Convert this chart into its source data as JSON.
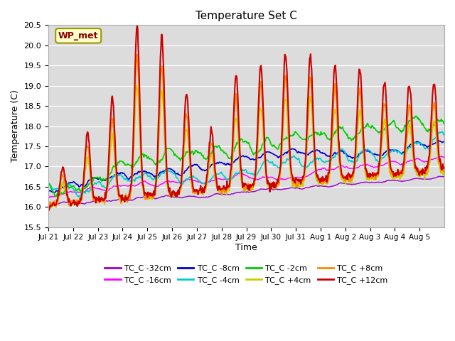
{
  "title": "Temperature Set C",
  "xlabel": "Time",
  "ylabel": "Temperature (C)",
  "ylim": [
    15.5,
    20.5
  ],
  "annotation": "WP_met",
  "series_labels": [
    "TC_C -32cm",
    "TC_C -16cm",
    "TC_C -8cm",
    "TC_C -4cm",
    "TC_C -2cm",
    "TC_C +4cm",
    "TC_C +8cm",
    "TC_C +12cm"
  ],
  "series_colors": [
    "#9900cc",
    "#ff00ff",
    "#0000cc",
    "#00cccc",
    "#00cc00",
    "#cccc00",
    "#ff8800",
    "#cc0000"
  ],
  "xtick_labels": [
    "Jul 21",
    "Jul 22",
    "Jul 23",
    "Jul 24",
    "Jul 25",
    "Jul 26",
    "Jul 27",
    "Jul 28",
    "Jul 29",
    "Jul 30",
    "Jul 31",
    "Aug 1",
    "Aug 2",
    "Aug 3",
    "Aug 4",
    "Aug 5"
  ],
  "bg_color": "#dcdcdc",
  "fig_color": "#ffffff",
  "n_days": 16,
  "n_per_day": 48
}
